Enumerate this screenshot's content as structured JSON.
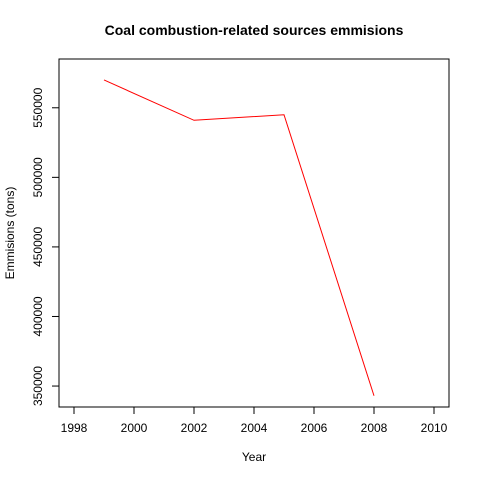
{
  "chart_data": {
    "type": "line",
    "title": "Coal combustion-related sources emmisions",
    "xlabel": "Year",
    "ylabel": "Emmisions (tons)",
    "xlim": [
      1998,
      2010
    ],
    "ylim": [
      345000,
      575000
    ],
    "x_ticks": [
      "1998",
      "2000",
      "2002",
      "2004",
      "2006",
      "2008",
      "2010"
    ],
    "y_ticks": [
      "350000",
      "400000",
      "450000",
      "500000",
      "550000"
    ],
    "grid": false,
    "series": [
      {
        "color": "#ff0000",
        "x": [
          1999,
          2002,
          2005,
          2008
        ],
        "y": [
          570000,
          541000,
          545000,
          343000
        ]
      }
    ]
  }
}
